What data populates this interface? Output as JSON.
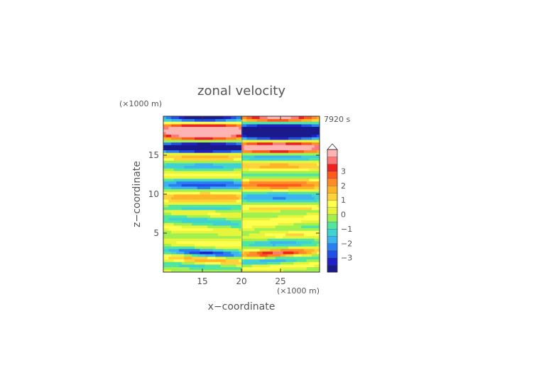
{
  "chart_data": {
    "type": "heatmap",
    "title": "zonal velocity",
    "xlabel": "x−coordinate",
    "ylabel": "z−coordinate",
    "x_unit": "(×1000 m)",
    "y_unit": "(×1000 m)",
    "time_label": "7920 s",
    "xlim": [
      10,
      30
    ],
    "ylim": [
      0,
      20
    ],
    "x_ticks": [
      15,
      20,
      25
    ],
    "y_ticks": [
      5,
      10,
      15
    ],
    "colorbar": {
      "min": -3.5,
      "max": 3.5,
      "step": 0.5,
      "ticks": [
        3,
        2,
        1,
        0,
        -1,
        -2,
        -3
      ],
      "tick_labels": [
        "3",
        "2",
        "1",
        "0",
        "−1",
        "−2",
        "−3"
      ],
      "colors": [
        "#1a1a8c",
        "#2020c8",
        "#2050e6",
        "#2a80f0",
        "#3cb4f0",
        "#40d2d2",
        "#50e6a0",
        "#a0f050",
        "#e6f53c",
        "#ffff50",
        "#ffd23c",
        "#ffb428",
        "#ff8c28",
        "#ff5a1e",
        "#ee2020",
        "#ff7878",
        "#ffb4b4"
      ]
    },
    "grid": false
  }
}
